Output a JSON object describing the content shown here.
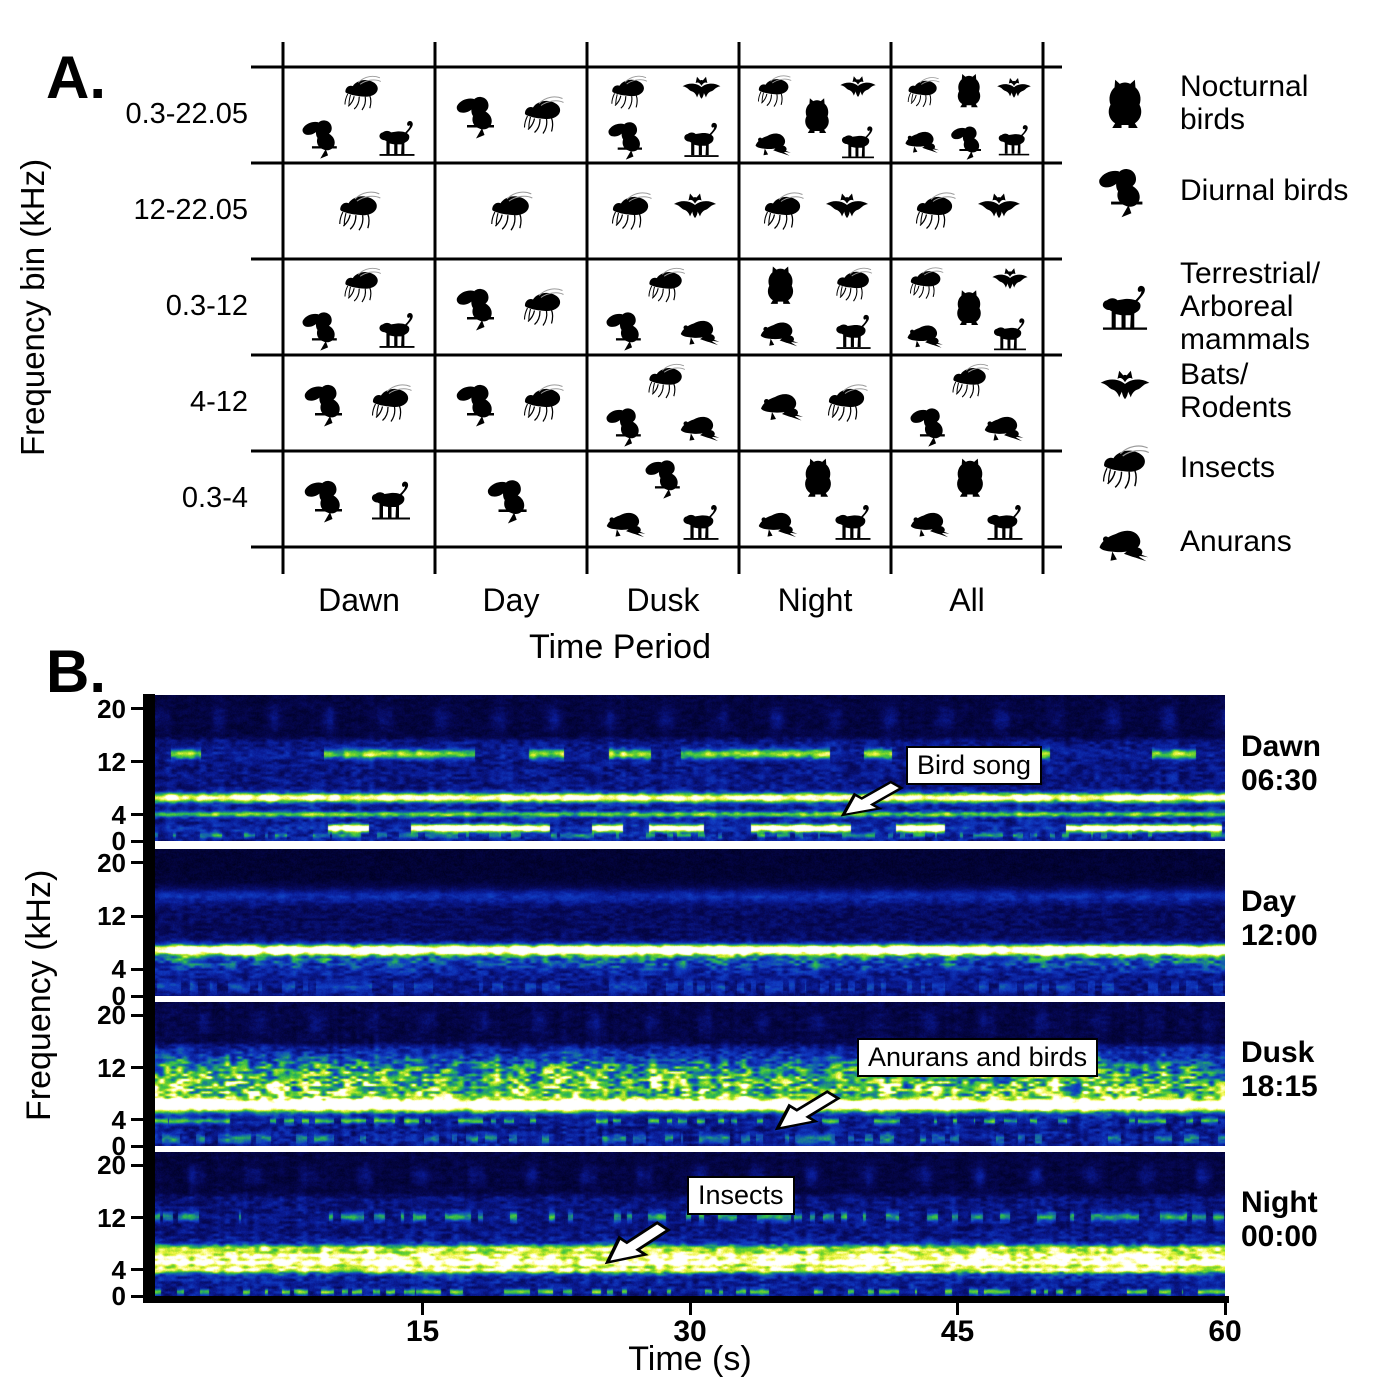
{
  "figure": {
    "panelA": {
      "label": "A.",
      "ylabel": "Frequency bin (kHz)",
      "xlabel": "Time Period"
    },
    "panelB": {
      "label": "B.",
      "ylabel": "Frequency (kHz)",
      "xlabel": "Time (s)"
    }
  },
  "chart_data": [
    {
      "type": "table",
      "title": "Animal sound groups present by frequency bin and time period",
      "xlabel": "Time Period",
      "ylabel": "Frequency bin (kHz)",
      "columns": [
        "Dawn",
        "Day",
        "Dusk",
        "Night",
        "All"
      ],
      "rows": [
        "0.3-22.05",
        "12-22.05",
        "0.3-12",
        "4-12",
        "0.3-4"
      ],
      "cells": [
        [
          [
            "insect",
            "diurnal_bird",
            "mammal"
          ],
          [
            "diurnal_bird",
            "insect"
          ],
          [
            "insect",
            "bat",
            "diurnal_bird",
            "mammal"
          ],
          [
            "insect",
            "bat",
            "nocturnal_bird",
            "anuran",
            "mammal"
          ],
          [
            "insect",
            "nocturnal_bird",
            "bat",
            "anuran",
            "diurnal_bird",
            "mammal"
          ]
        ],
        [
          [
            "insect"
          ],
          [
            "insect"
          ],
          [
            "insect",
            "bat"
          ],
          [
            "insect",
            "bat"
          ],
          [
            "insect",
            "bat"
          ]
        ],
        [
          [
            "insect",
            "diurnal_bird",
            "mammal"
          ],
          [
            "diurnal_bird",
            "insect"
          ],
          [
            "insect",
            "diurnal_bird",
            "anuran"
          ],
          [
            "nocturnal_bird",
            "insect",
            "anuran",
            "mammal"
          ],
          [
            "insect",
            "bat",
            "nocturnal_bird",
            "anuran",
            "mammal"
          ]
        ],
        [
          [
            "diurnal_bird",
            "insect"
          ],
          [
            "diurnal_bird",
            "insect"
          ],
          [
            "insect",
            "diurnal_bird",
            "anuran"
          ],
          [
            "anuran",
            "insect"
          ],
          [
            "insect",
            "diurnal_bird",
            "anuran"
          ]
        ],
        [
          [
            "diurnal_bird",
            "mammal"
          ],
          [
            "diurnal_bird"
          ],
          [
            "diurnal_bird",
            "anuran",
            "mammal"
          ],
          [
            "nocturnal_bird",
            "anuran",
            "mammal"
          ],
          [
            "nocturnal_bird",
            "anuran",
            "mammal"
          ]
        ]
      ],
      "legend": [
        {
          "id": "nocturnal_bird",
          "label": "Nocturnal birds",
          "lines": [
            "Nocturnal",
            "birds"
          ]
        },
        {
          "id": "diurnal_bird",
          "label": "Diurnal birds",
          "lines": [
            "Diurnal birds"
          ]
        },
        {
          "id": "mammal",
          "label": "Terrestrial/Arboreal mammals",
          "lines": [
            "Terrestrial/",
            "Arboreal",
            "mammals"
          ]
        },
        {
          "id": "bat",
          "label": "Bats/Rodents",
          "lines": [
            "Bats/",
            "Rodents"
          ]
        },
        {
          "id": "insect",
          "label": "Insects",
          "lines": [
            "Insects"
          ]
        },
        {
          "id": "anuran",
          "label": "Anurans",
          "lines": [
            "Anurans"
          ]
        }
      ]
    },
    {
      "type": "heatmap",
      "title": "Example 60-s spectrograms at four times of day",
      "xlabel": "Time (s)",
      "ylabel": "Frequency (kHz)",
      "x_range": [
        0,
        60
      ],
      "x_ticks": [
        15,
        30,
        45,
        60
      ],
      "y_ticks": [
        20,
        12,
        4,
        0
      ],
      "y_max_khz": 22.05,
      "panels": [
        {
          "period": "Dawn",
          "time": "06:30",
          "bg": [
            0.08,
            0.22,
            0.26
          ],
          "stripe": 0.16,
          "bands": [
            {
              "f": 18.5,
              "w": 1.3,
              "a": 0.13,
              "t": "blobs"
            },
            {
              "f": 13.2,
              "w": 0.55,
              "a": 0.5,
              "t": "patchy"
            },
            {
              "f": 6.6,
              "w": 0.5,
              "a": 0.78,
              "t": "line"
            },
            {
              "f": 4.1,
              "w": 0.32,
              "a": 0.45,
              "t": "line"
            },
            {
              "f": 2.0,
              "w": 0.4,
              "a": 0.9,
              "t": "patchy"
            },
            {
              "f": 0.9,
              "w": 0.3,
              "a": 0.3,
              "t": "dots"
            }
          ]
        },
        {
          "period": "Day",
          "time": "12:00",
          "bg": [
            0.05,
            0.14,
            0.2
          ],
          "stripe": 0.08,
          "bands": [
            {
              "f": 15.2,
              "w": 0.9,
              "a": 0.18,
              "t": "line"
            },
            {
              "f": 7.0,
              "w": 0.55,
              "a": 0.97,
              "t": "line"
            },
            {
              "f": 5.6,
              "w": 1.4,
              "a": 0.3,
              "t": "wash"
            },
            {
              "f": 1.4,
              "w": 0.6,
              "a": 0.2,
              "t": "dots"
            }
          ]
        },
        {
          "period": "Dusk",
          "time": "18:15",
          "bg": [
            0.09,
            0.24,
            0.24
          ],
          "stripe": 0.26,
          "bands": [
            {
              "f": 19.0,
              "w": 1.2,
              "a": 0.1,
              "t": "blobs"
            },
            {
              "f": 11.5,
              "w": 1.7,
              "a": 0.4,
              "t": "wash"
            },
            {
              "f": 8.6,
              "w": 1.4,
              "a": 0.55,
              "t": "wash"
            },
            {
              "f": 6.3,
              "w": 0.7,
              "a": 1.0,
              "t": "line"
            },
            {
              "f": 3.9,
              "w": 0.3,
              "a": 0.42,
              "t": "dots"
            },
            {
              "f": 1.2,
              "w": 0.5,
              "a": 0.3,
              "t": "dots"
            }
          ]
        },
        {
          "period": "Night",
          "time": "00:00",
          "bg": [
            0.08,
            0.2,
            0.22
          ],
          "stripe": 0.2,
          "bands": [
            {
              "f": 18.5,
              "w": 1.1,
              "a": 0.15,
              "t": "blobs"
            },
            {
              "f": 12.2,
              "w": 0.5,
              "a": 0.42,
              "t": "dots"
            },
            {
              "f": 7.3,
              "w": 0.45,
              "a": 0.5,
              "t": "line"
            },
            {
              "f": 6.2,
              "w": 0.4,
              "a": 0.55,
              "t": "line"
            },
            {
              "f": 5.2,
              "w": 0.4,
              "a": 0.65,
              "t": "line"
            },
            {
              "f": 4.1,
              "w": 0.4,
              "a": 0.55,
              "t": "line"
            },
            {
              "f": 5.5,
              "w": 2.0,
              "a": 0.25,
              "t": "wash"
            },
            {
              "f": 0.7,
              "w": 0.3,
              "a": 0.5,
              "t": "dots"
            }
          ]
        }
      ],
      "annotations": [
        {
          "panel": "Dawn",
          "text": "Bird song",
          "points_to_khz": 2,
          "points_to_s": 38
        },
        {
          "panel": "Dusk",
          "text": "Anurans and birds",
          "points_to_khz": 1.5,
          "points_to_s": 36
        },
        {
          "panel": "Night",
          "text": "Insects",
          "points_to_khz": 5.5,
          "points_to_s": 26
        }
      ]
    }
  ]
}
